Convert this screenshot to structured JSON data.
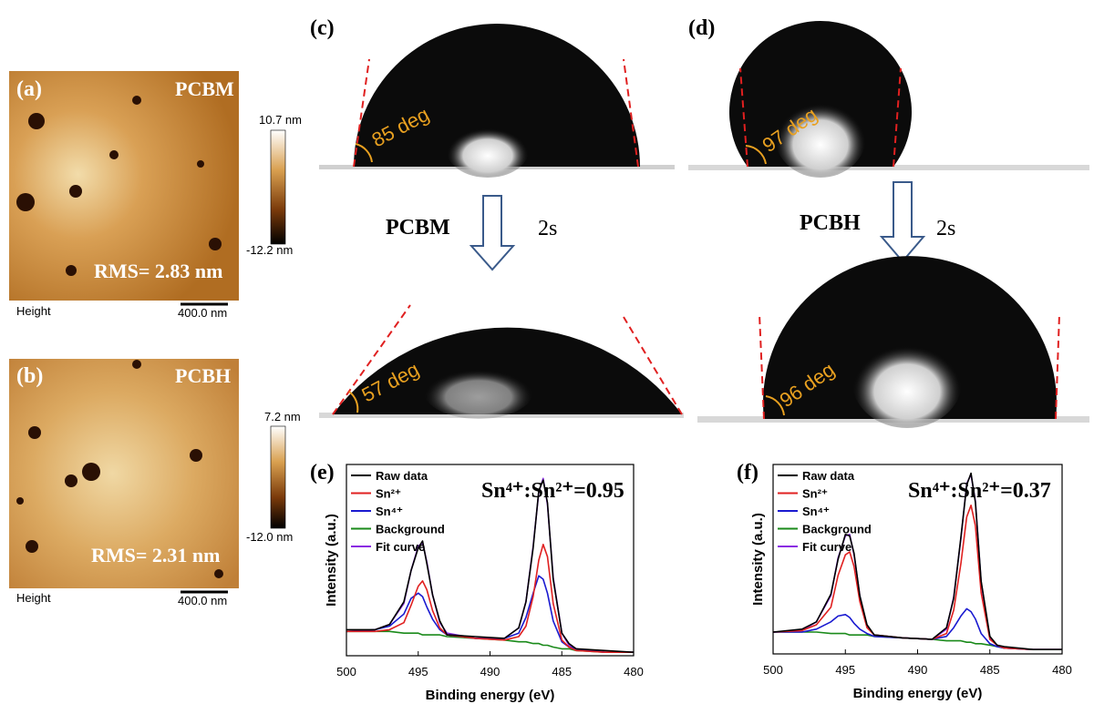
{
  "panels": [
    {
      "label": "(a)",
      "sample": "PCBM",
      "rms": "RMS= 2.83 nm",
      "colorbar_max": "10.7 nm",
      "colorbar_min": "-12.2 nm",
      "axis_label": "Height",
      "scale_bar": "400.0 nm"
    },
    {
      "label": "(b)",
      "sample": "PCBH",
      "rms": "RMS= 2.31 nm",
      "colorbar_max": "7.2 nm",
      "colorbar_min": "-12.0 nm",
      "axis_label": "Height",
      "scale_bar": "400.0 nm"
    }
  ],
  "wetting": [
    {
      "label": "(c)",
      "sample": "PCBM",
      "time": "2s",
      "angle_before": "85 deg",
      "angle_after": "57 deg"
    },
    {
      "label": "(d)",
      "sample": "PCBH",
      "time": "2s",
      "angle_before": "97 deg",
      "angle_after": "96 deg"
    }
  ],
  "chart_data": [
    {
      "type": "line",
      "label": "(e)",
      "annotation": "Sn⁴⁺:Sn²⁺=0.95",
      "x_label": "Binding energy (eV)",
      "y_label": "Intensity (a.u.)",
      "x": [
        500,
        498,
        497,
        496,
        495.5,
        495,
        494.7,
        494.4,
        494,
        493.5,
        493,
        491,
        489,
        488,
        487.5,
        487,
        486.6,
        486.3,
        486,
        485.6,
        485,
        484.5,
        484,
        482,
        480
      ],
      "xlim": [
        500,
        480
      ],
      "xticks": [
        500,
        495,
        490,
        485,
        480
      ],
      "ylim": [
        0,
        110
      ],
      "series": [
        {
          "name": "Raw data",
          "color": "#000000",
          "values": [
            15,
            15,
            18,
            31,
            49,
            62,
            66,
            53,
            35,
            20,
            12,
            11,
            10,
            16,
            31,
            62,
            95,
            101,
            88,
            44,
            13,
            7,
            4,
            3,
            2
          ]
        },
        {
          "name": "Sn²⁺",
          "color": "#e02020",
          "values": [
            14,
            14,
            15,
            19,
            29,
            40,
            43,
            38,
            26,
            16,
            12,
            10,
            9,
            11,
            17,
            34,
            55,
            64,
            57,
            30,
            9,
            5,
            3,
            2,
            2
          ]
        },
        {
          "name": "Sn⁴⁺",
          "color": "#1a1ad0",
          "values": [
            14,
            15,
            17,
            24,
            33,
            36,
            34,
            28,
            21,
            15,
            12,
            10,
            10,
            13,
            22,
            36,
            46,
            44,
            36,
            20,
            8,
            5,
            4,
            2,
            2
          ]
        },
        {
          "name": "Background",
          "color": "#1a8a1a",
          "values": [
            14,
            14,
            14,
            13,
            13,
            13,
            12,
            12,
            12,
            12,
            11,
            10,
            9,
            8,
            8,
            7,
            7,
            6,
            6,
            5,
            4,
            4,
            3,
            2,
            2
          ]
        },
        {
          "name": "Fit curve",
          "color": "#8a2be2",
          "values": [
            14,
            15,
            18,
            30,
            49,
            63,
            65,
            54,
            35,
            19,
            13,
            10,
            10,
            16,
            31,
            63,
            94,
            102,
            87,
            45,
            13,
            6,
            4,
            2,
            2
          ]
        }
      ]
    },
    {
      "type": "line",
      "label": "(f)",
      "annotation": "Sn⁴⁺:Sn²⁺=0.37",
      "x_label": "Binding energy (eV)",
      "y_label": "Intensity (a.u.)",
      "x": [
        500,
        498,
        497,
        496,
        495.5,
        495,
        494.7,
        494.4,
        494,
        493.5,
        493,
        491,
        489,
        488,
        487.5,
        487,
        486.6,
        486.3,
        486,
        485.6,
        485,
        484.5,
        484,
        482,
        480
      ],
      "xlim": [
        500,
        480
      ],
      "xticks": [
        500,
        495,
        490,
        485,
        480
      ],
      "ylim": [
        0,
        130
      ],
      "series": [
        {
          "name": "Raw data",
          "color": "#000000",
          "values": [
            15,
            17,
            22,
            41,
            65,
            82,
            81,
            69,
            40,
            20,
            13,
            11,
            10,
            18,
            38,
            80,
            116,
            124,
            104,
            50,
            12,
            6,
            5,
            3,
            3
          ]
        },
        {
          "name": "Sn²⁺",
          "color": "#e02020",
          "values": [
            15,
            16,
            20,
            32,
            54,
            68,
            70,
            60,
            36,
            18,
            13,
            11,
            10,
            14,
            30,
            62,
            94,
            102,
            88,
            42,
            10,
            6,
            4,
            3,
            3
          ]
        },
        {
          "name": "Sn⁴⁺",
          "color": "#1a1ad0",
          "values": [
            15,
            15,
            17,
            22,
            26,
            27,
            25,
            21,
            17,
            14,
            12,
            11,
            10,
            12,
            18,
            26,
            31,
            29,
            24,
            14,
            7,
            5,
            4,
            3,
            3
          ]
        },
        {
          "name": "Background",
          "color": "#1a8a1a",
          "values": [
            15,
            15,
            15,
            14,
            14,
            14,
            13,
            13,
            13,
            13,
            12,
            11,
            10,
            9,
            9,
            9,
            8,
            8,
            7,
            7,
            6,
            5,
            4,
            3,
            3
          ]
        },
        {
          "name": "Fit curve",
          "color": "#8a2be2",
          "values": [
            15,
            16,
            22,
            40,
            66,
            81,
            82,
            68,
            40,
            19,
            13,
            11,
            10,
            17,
            39,
            79,
            117,
            123,
            105,
            49,
            11,
            6,
            4,
            3,
            3
          ]
        }
      ]
    }
  ]
}
